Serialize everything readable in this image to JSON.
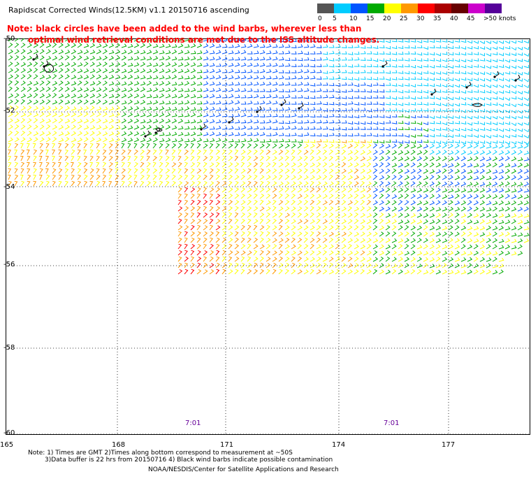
{
  "header": {
    "title": "Rapidscat Corrected Winds(12.5KM) v1.1 20150716 ascending",
    "note_line1": "Note: black circles have been added to the wind barbs, wherever less than",
    "note_line2": "optimal wind retrieval conditions are met due to the ISS altitude changes."
  },
  "legend": {
    "items": [
      {
        "label": "0",
        "color": "#555555"
      },
      {
        "label": "5",
        "color": "#00ccff"
      },
      {
        "label": "10",
        "color": "#0055ff"
      },
      {
        "label": "15",
        "color": "#00aa00"
      },
      {
        "label": "20",
        "color": "#ffff00"
      },
      {
        "label": "25",
        "color": "#ff9900"
      },
      {
        "label": "30",
        "color": "#ff0000"
      },
      {
        "label": "35",
        "color": "#aa0000"
      },
      {
        "label": "40",
        "color": "#660000"
      },
      {
        "label": "45",
        "color": "#cc00cc"
      },
      {
        "label": ">50 knots",
        "color": "#550099"
      }
    ]
  },
  "map": {
    "x_axis_labels": [
      "165",
      "168",
      "171",
      "174",
      "177"
    ],
    "y_axis_labels": [
      "-50",
      "-52",
      "-54",
      "-56",
      "-58",
      "-60"
    ],
    "time_labels": [
      "7:01",
      "7:01"
    ]
  },
  "footer": {
    "line1": "Note: 1) Times are GMT 2)Times along bottom correspond to measurement at ~50S",
    "line2": "3)Data buffer is 22 hrs from 20150716 4) Black wind barbs indicate possible contamination",
    "credit": "NOAA/NESDIS/Center for Satellite Applications and Research"
  }
}
